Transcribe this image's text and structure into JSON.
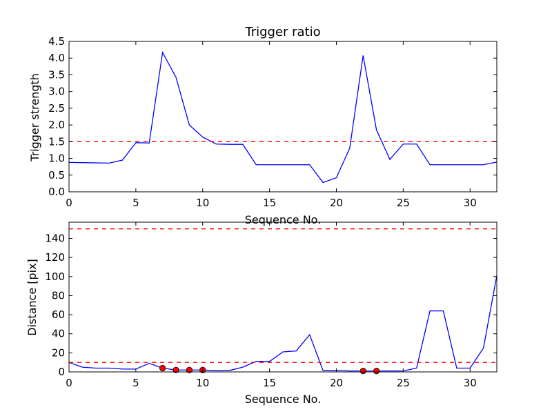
{
  "chart_data": [
    {
      "type": "line",
      "title": "Trigger ratio",
      "xlabel": "Sequence No.",
      "ylabel": "Trigger strength",
      "xlim": [
        0,
        32
      ],
      "ylim": [
        0,
        4.5
      ],
      "xticks": [
        "0",
        "5",
        "10",
        "15",
        "20",
        "25",
        "30"
      ],
      "yticks": [
        "0.0",
        "0.5",
        "1.0",
        "1.5",
        "2.0",
        "2.5",
        "3.0",
        "3.5",
        "4.0",
        "4.5"
      ],
      "grid": false,
      "series": [
        {
          "color": "#0000ff",
          "x": [
            0,
            3,
            4,
            5,
            6,
            7,
            8,
            9,
            10,
            11,
            12,
            13,
            14,
            15,
            16,
            17,
            18,
            19,
            20,
            21,
            22,
            23,
            24,
            25,
            26,
            27,
            28,
            29,
            30,
            31,
            32
          ],
          "y": [
            0.88,
            0.86,
            0.95,
            1.47,
            1.46,
            4.17,
            3.43,
            2.0,
            1.64,
            1.43,
            1.42,
            1.42,
            0.81,
            0.81,
            0.81,
            0.81,
            0.81,
            0.28,
            0.42,
            1.31,
            4.08,
            1.85,
            0.97,
            1.43,
            1.43,
            0.81,
            0.81,
            0.81,
            0.81,
            0.81,
            0.89
          ]
        }
      ],
      "threshold_lines": [
        {
          "y": 1.5,
          "color": "#ff0000",
          "style": "dashed"
        }
      ]
    },
    {
      "type": "line",
      "title": "",
      "xlabel": "Sequence No.",
      "ylabel": "Distance [pix]",
      "xlim": [
        0,
        32
      ],
      "ylim": [
        0,
        157
      ],
      "xticks": [
        "0",
        "5",
        "10",
        "15",
        "20",
        "25",
        "30"
      ],
      "yticks": [
        "0",
        "20",
        "40",
        "60",
        "80",
        "100",
        "120",
        "140"
      ],
      "grid": false,
      "series": [
        {
          "color": "#0000ff",
          "x": [
            0,
            1,
            2,
            3,
            4,
            5,
            6,
            7,
            8,
            9,
            10,
            11,
            12,
            13,
            14,
            15,
            16,
            17,
            18,
            19,
            20,
            21,
            22,
            23,
            24,
            25,
            26,
            27,
            28,
            29,
            30,
            31,
            32
          ],
          "y": [
            10,
            5,
            4,
            4,
            3,
            3,
            9,
            4,
            2,
            2,
            2,
            1.5,
            1.5,
            5,
            11,
            11,
            21,
            22,
            39,
            1.5,
            1.5,
            1,
            1,
            1,
            1,
            1,
            4,
            64,
            64,
            4,
            4,
            25,
            101
          ]
        }
      ],
      "markers": {
        "color": "#ff0000",
        "x": [
          7,
          8,
          9,
          10,
          22,
          23
        ],
        "y": [
          4,
          2,
          2,
          2,
          1,
          1
        ]
      },
      "threshold_lines": [
        {
          "y": 150,
          "color": "#ff0000",
          "style": "dashed"
        },
        {
          "y": 10,
          "color": "#ff0000",
          "style": "dashed"
        }
      ]
    }
  ]
}
